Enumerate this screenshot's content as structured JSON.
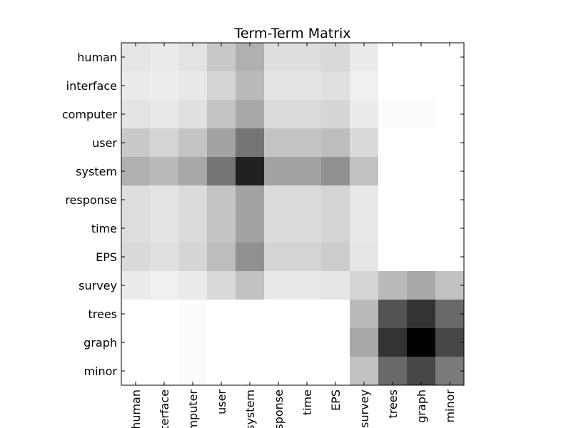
{
  "chart_data": {
    "type": "heatmap",
    "title": "Term-Term Matrix",
    "colormap": "grayscale-reversed",
    "row_labels": [
      "human",
      "interface",
      "computer",
      "user",
      "system",
      "response",
      "time",
      "EPS",
      "survey",
      "trees",
      "graph",
      "minor"
    ],
    "col_labels": [
      "human",
      "interface",
      "computer",
      "user",
      "system",
      "response",
      "time",
      "EPS",
      "survey",
      "trees",
      "graph",
      "minor"
    ],
    "values": [
      [
        0.1,
        0.08,
        0.11,
        0.21,
        0.31,
        0.13,
        0.13,
        0.15,
        0.08,
        0.0,
        0.0,
        0.0
      ],
      [
        0.08,
        0.07,
        0.09,
        0.17,
        0.27,
        0.11,
        0.11,
        0.12,
        0.06,
        0.0,
        0.0,
        0.0
      ],
      [
        0.11,
        0.09,
        0.12,
        0.23,
        0.34,
        0.14,
        0.14,
        0.16,
        0.08,
        0.01,
        0.01,
        0.0
      ],
      [
        0.21,
        0.17,
        0.23,
        0.36,
        0.54,
        0.23,
        0.23,
        0.26,
        0.15,
        0.0,
        0.0,
        0.0
      ],
      [
        0.31,
        0.27,
        0.34,
        0.54,
        0.87,
        0.36,
        0.36,
        0.43,
        0.24,
        0.0,
        0.0,
        0.0
      ],
      [
        0.13,
        0.11,
        0.14,
        0.23,
        0.36,
        0.14,
        0.14,
        0.17,
        0.09,
        0.0,
        0.0,
        0.0
      ],
      [
        0.13,
        0.11,
        0.14,
        0.23,
        0.36,
        0.14,
        0.14,
        0.17,
        0.09,
        0.0,
        0.0,
        0.0
      ],
      [
        0.15,
        0.12,
        0.16,
        0.26,
        0.43,
        0.17,
        0.17,
        0.2,
        0.1,
        0.0,
        0.0,
        0.0
      ],
      [
        0.08,
        0.06,
        0.08,
        0.15,
        0.24,
        0.09,
        0.09,
        0.1,
        0.17,
        0.27,
        0.34,
        0.24
      ],
      [
        0.0,
        0.0,
        0.01,
        0.0,
        0.0,
        0.0,
        0.0,
        0.0,
        0.27,
        0.67,
        0.8,
        0.59
      ],
      [
        0.0,
        0.0,
        0.01,
        0.0,
        0.0,
        0.0,
        0.0,
        0.0,
        0.34,
        0.8,
        1.0,
        0.72
      ],
      [
        0.0,
        0.0,
        0.01,
        0.0,
        0.0,
        0.0,
        0.0,
        0.0,
        0.24,
        0.59,
        0.72,
        0.52
      ]
    ],
    "grid": false,
    "legend": "none"
  }
}
